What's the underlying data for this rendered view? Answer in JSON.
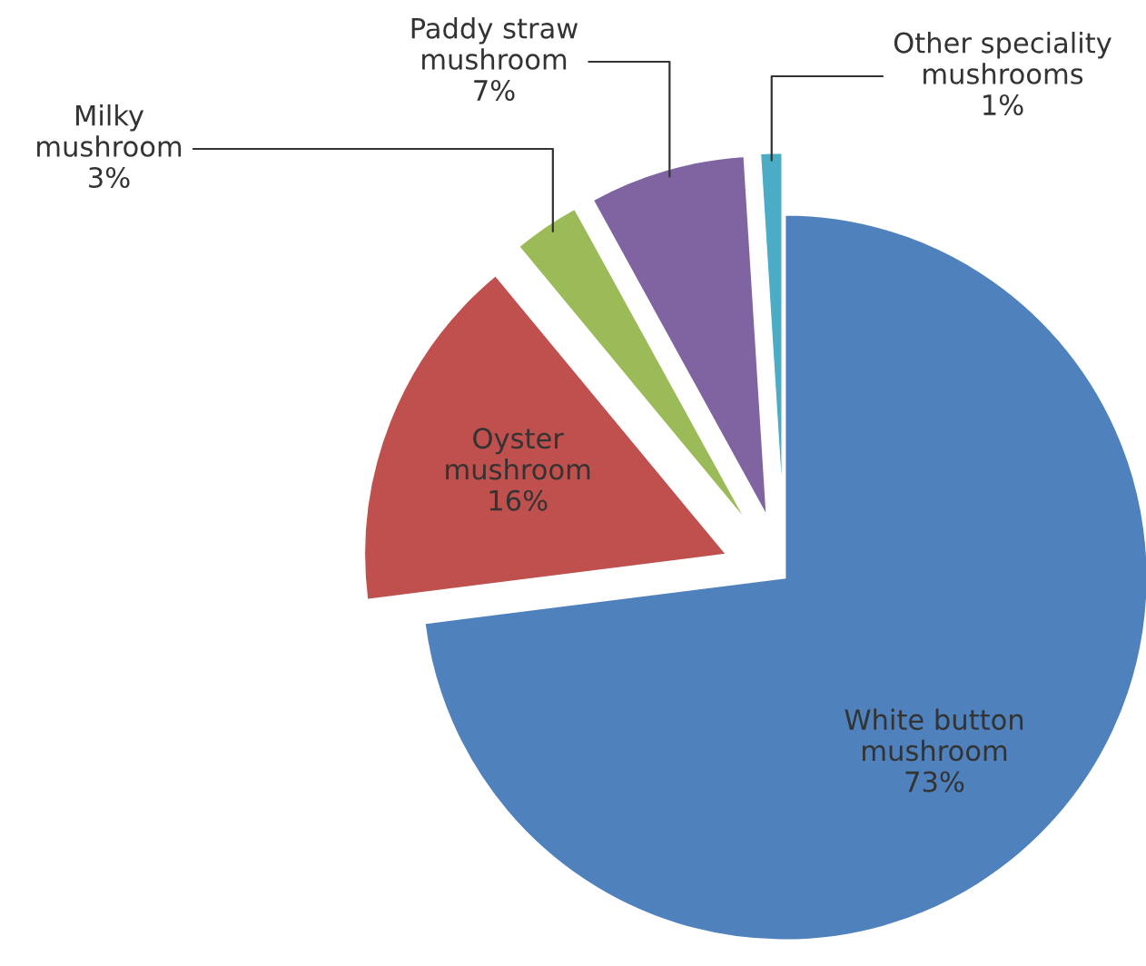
{
  "chart_data": {
    "type": "pie",
    "categories": [
      "White button\nmushroom",
      "Oyster\nmushroom",
      "Milky\nmushroom",
      "Paddy straw\nmushroom",
      "Other speciality\nmushrooms"
    ],
    "values": [
      73,
      16,
      3,
      7,
      1
    ],
    "colors": [
      "#4f81bd",
      "#c0504d",
      "#9bbb59",
      "#8064a2",
      "#4bacc6"
    ],
    "value_labels": [
      "73%",
      "16%",
      "3%",
      "7%",
      "1%"
    ],
    "legend": false
  }
}
